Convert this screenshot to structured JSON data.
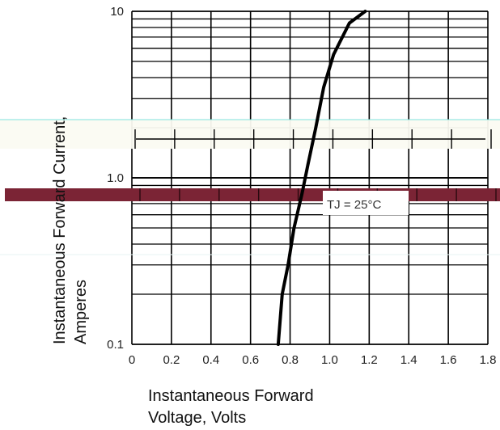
{
  "chart_data": {
    "type": "line",
    "title": "",
    "xlabel_lines": [
      "Instantaneous Forward",
      "Voltage, Volts"
    ],
    "ylabel_lines": [
      "Instantaneous Forward Current,",
      "Amperes"
    ],
    "x_ticks": [
      "0",
      "0.2",
      "0.4",
      "0.6",
      "0.8",
      "1.0",
      "1.2",
      "1.4",
      "1.6",
      "1.8"
    ],
    "y_ticks": [
      "0.1",
      "1.0",
      "10"
    ],
    "xlim": [
      0,
      1.8
    ],
    "ylim": [
      0.1,
      10
    ],
    "y_scale": "log",
    "grid": true,
    "annotation": "TJ = 25°C",
    "series": [
      {
        "x": [
          0.74,
          0.76,
          0.79,
          0.82,
          0.86,
          0.89,
          0.93,
          0.97,
          1.02,
          1.1,
          1.18
        ],
        "y": [
          0.1,
          0.2,
          0.3,
          0.5,
          0.8,
          1.2,
          2,
          3.5,
          5.5,
          8.5,
          10
        ]
      }
    ]
  },
  "colors": {
    "curve": "#000000",
    "grid": "#000000",
    "overlay_band": "#7b2435",
    "overlay_light": "#fbfbf2"
  }
}
